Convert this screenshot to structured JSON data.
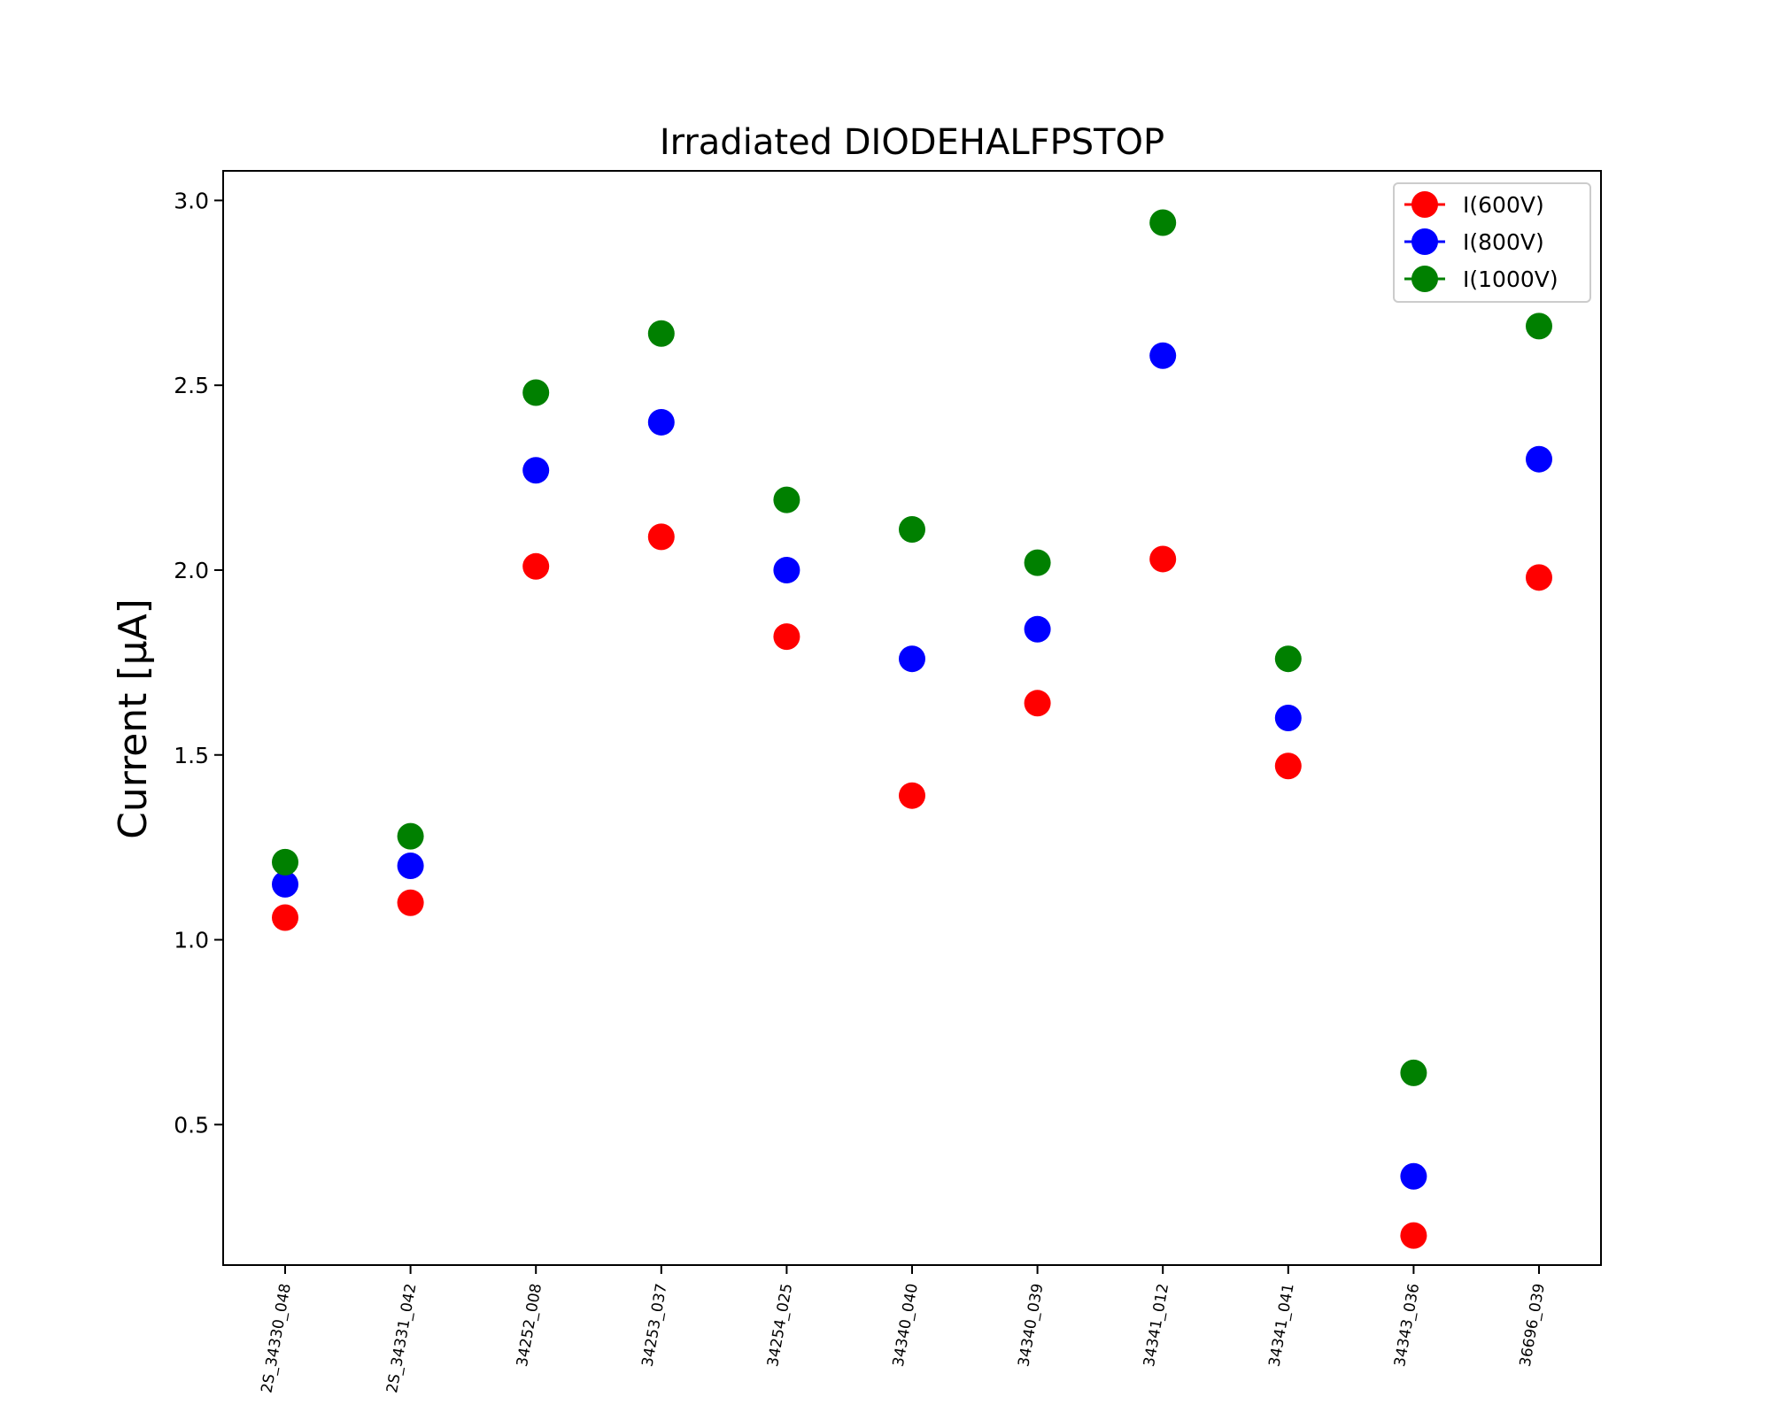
{
  "chart_data": {
    "type": "scatter",
    "title": "Irradiated DIODEHALFPSTOP",
    "xlabel": "",
    "ylabel": "Current [μA]",
    "categories": [
      "2S_34330_048",
      "2S_34331_042",
      "34252_008",
      "34253_037",
      "34254_025",
      "34340_040",
      "34340_039",
      "34341_012",
      "34341_041",
      "34343_036",
      "36696_039"
    ],
    "ylim": [
      0.12,
      3.08
    ],
    "yticks": [
      "0.5",
      "1.0",
      "1.5",
      "2.0",
      "2.5",
      "3.0"
    ],
    "grid": false,
    "legend_position": "top-right",
    "series": [
      {
        "name": "I(600V)",
        "color": "#ff0000",
        "values": [
          1.06,
          1.1,
          2.01,
          2.09,
          1.82,
          1.39,
          1.64,
          2.03,
          1.47,
          0.2,
          1.98
        ]
      },
      {
        "name": "I(800V)",
        "color": "#0000ff",
        "values": [
          1.15,
          1.2,
          2.27,
          2.4,
          2.0,
          1.76,
          1.84,
          2.58,
          1.6,
          0.36,
          2.3
        ]
      },
      {
        "name": "I(1000V)",
        "color": "#008000",
        "values": [
          1.21,
          1.28,
          2.48,
          2.64,
          2.19,
          2.11,
          2.02,
          2.94,
          1.76,
          0.64,
          2.66
        ]
      }
    ]
  }
}
